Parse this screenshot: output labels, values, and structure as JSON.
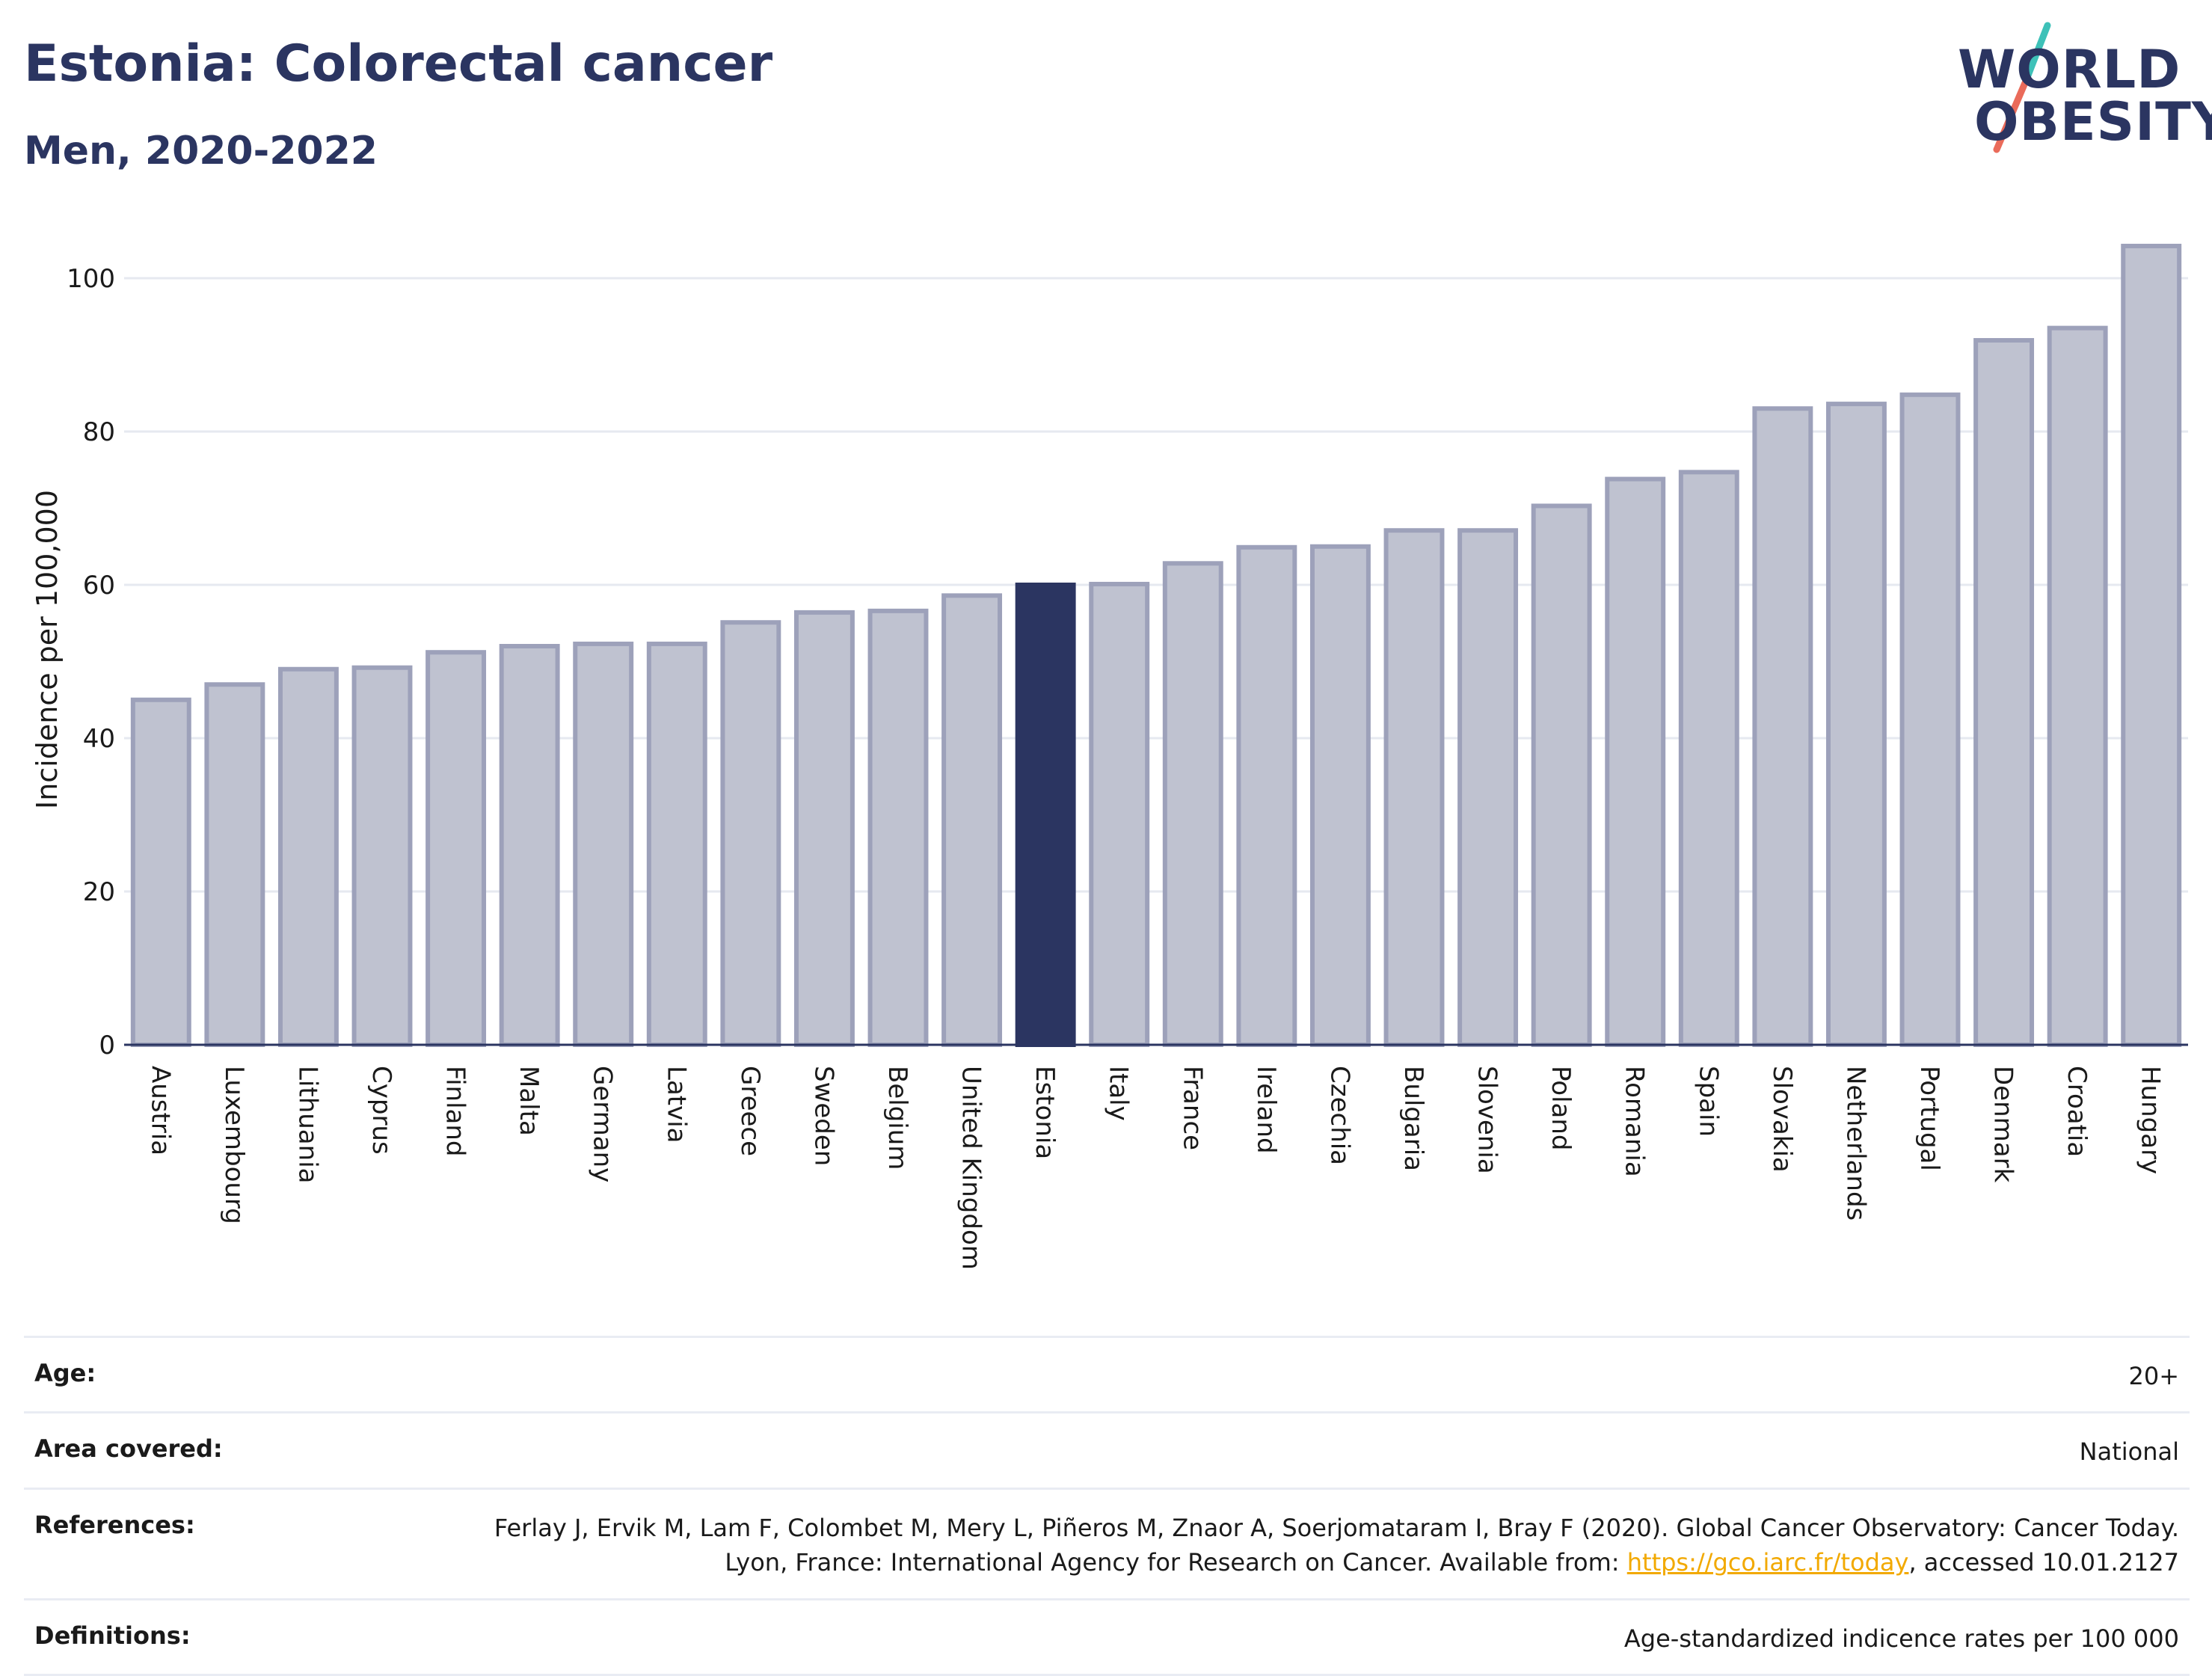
{
  "header": {
    "title": "Estonia: Colorectal cancer",
    "subtitle": "Men, 2020-2022"
  },
  "logo": {
    "line1": "WORLD",
    "line2": "OBESITY",
    "slash_colors": [
      "#3ec1b8",
      "#ea6b5a"
    ]
  },
  "chart_data": {
    "type": "bar",
    "title": "",
    "xlabel": "",
    "ylabel": "Incidence per 100,000",
    "ylim": [
      0,
      108
    ],
    "yticks": [
      0,
      20,
      40,
      60,
      80,
      100
    ],
    "grid": true,
    "highlight": "Estonia",
    "colors": {
      "bar": "#bfc2d0",
      "bar_border": "#9da1ba",
      "highlight": "#2b3561",
      "axis": "#2b3561",
      "grid": "#e6e9f0"
    },
    "categories": [
      "Austria",
      "Luxembourg",
      "Lithuania",
      "Cyprus",
      "Finland",
      "Malta",
      "Germany",
      "Latvia",
      "Greece",
      "Sweden",
      "Belgium",
      "United Kingdom",
      "Estonia",
      "Italy",
      "France",
      "Ireland",
      "Czechia",
      "Bulgaria",
      "Slovenia",
      "Poland",
      "Romania",
      "Spain",
      "Slovakia",
      "Netherlands",
      "Portugal",
      "Denmark",
      "Croatia",
      "Hungary"
    ],
    "values": [
      45.0,
      47.0,
      49.0,
      49.2,
      51.2,
      52.0,
      52.3,
      52.3,
      55.1,
      56.4,
      56.6,
      58.6,
      60.0,
      60.1,
      62.8,
      64.9,
      65.0,
      67.1,
      67.1,
      70.3,
      73.8,
      74.7,
      83.0,
      83.6,
      84.8,
      91.9,
      93.5,
      104.2
    ]
  },
  "info": {
    "age_label": "Age:",
    "age_value": "20+",
    "area_label": "Area covered:",
    "area_value": "National",
    "references_label": "References:",
    "references_text": "Ferlay J, Ervik M, Lam F, Colombet M, Mery L, Piñeros M, Znaor A, Soerjomataram I, Bray F (2020). Global Cancer Observatory: Cancer Today. Lyon, France: International Agency for Research on Cancer. Available from: ",
    "references_link": "https://gco.iarc.fr/today",
    "references_suffix": ", accessed 10.01.2127",
    "definitions_label": "Definitions:",
    "definitions_value": "Age-standardized indicence rates per 100 000"
  }
}
